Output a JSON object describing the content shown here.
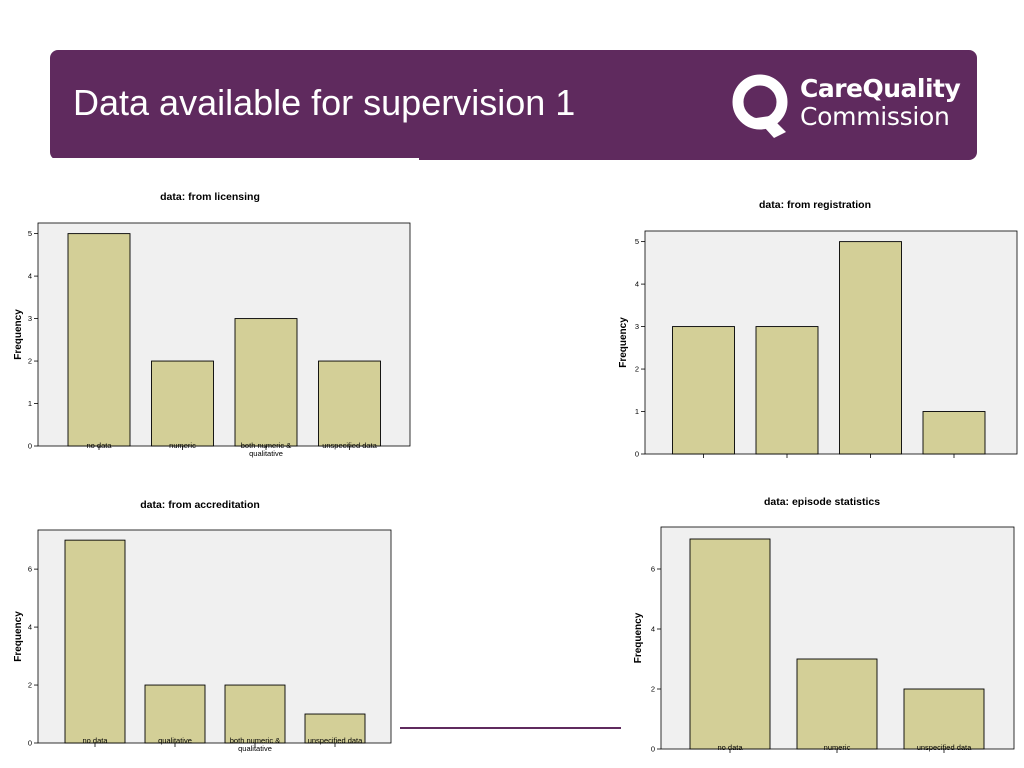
{
  "header": {
    "title": "Data available for supervision 1",
    "logo": {
      "line1": "CareQuality",
      "line2": "Commission",
      "icon": "cqc-q-logo-icon"
    }
  },
  "colors": {
    "header_bg": "#5f2a5e",
    "bar_fill": "#d3cf97",
    "plot_bg": "#f0f0f0"
  },
  "chart_data": [
    {
      "type": "bar",
      "title": "data: from licensing",
      "ylabel": "Frequency",
      "xlabel": "",
      "categories": [
        "no data",
        "numeric",
        "both numeric & qualitative",
        "unspecified data"
      ],
      "values": [
        5,
        2,
        3,
        2
      ],
      "ylim": [
        0,
        5.25
      ],
      "yticks": [
        0,
        1,
        2,
        3,
        4,
        5
      ],
      "grid": false
    },
    {
      "type": "bar",
      "title": "data: from registration",
      "ylabel": "Frequency",
      "xlabel": "",
      "categories": [
        "",
        "",
        "",
        ""
      ],
      "values": [
        3,
        3,
        5,
        1
      ],
      "ylim": [
        0,
        5.25
      ],
      "yticks": [
        0,
        1,
        2,
        3,
        4,
        5
      ],
      "grid": false
    },
    {
      "type": "bar",
      "title": "data: from accreditation",
      "ylabel": "Frequency",
      "xlabel": "",
      "categories": [
        "no data",
        "qualitative",
        "both numeric & qualitative",
        "unspecified data"
      ],
      "values": [
        7,
        2,
        2,
        1
      ],
      "ylim": [
        0,
        7.35
      ],
      "yticks": [
        0,
        2,
        4,
        6
      ],
      "grid": false
    },
    {
      "type": "bar",
      "title": "data: episode statistics",
      "ylabel": "Frequency",
      "xlabel": "",
      "categories": [
        "no data",
        "numeric",
        "unspecified data"
      ],
      "values": [
        7,
        3,
        2
      ],
      "ylim": [
        0,
        7.4
      ],
      "yticks": [
        0,
        2,
        4,
        6
      ],
      "grid": false
    }
  ]
}
